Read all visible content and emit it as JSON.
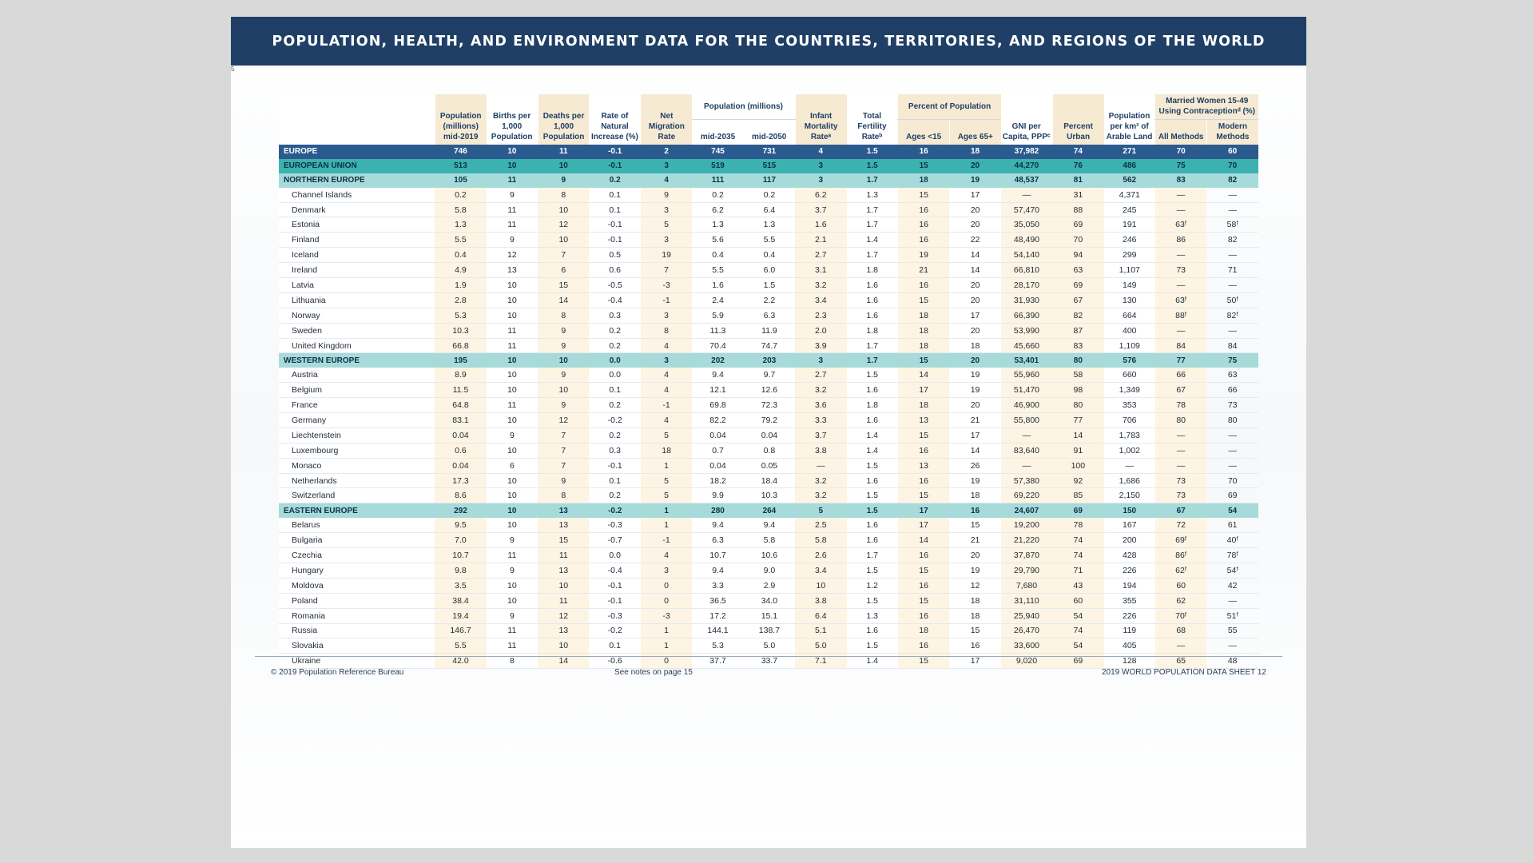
{
  "banner_title": "POPULATION, HEALTH, AND ENVIRONMENT DATA FOR THE COUNTRIES, TERRITORIES, AND REGIONS OF THE WORLD",
  "page_mark": "5",
  "headers": {
    "pop_mid2019": "Population (millions) mid-2019",
    "births": "Births per 1,000 Population",
    "deaths": "Deaths per 1,000 Population",
    "rni": "Rate of Natural Increase (%)",
    "migration": "Net Migration Rate",
    "pop_proj_group": "Population (millions)",
    "mid2035": "mid-2035",
    "mid2050": "mid-2050",
    "imr": "Infant Mortality Rateᵃ",
    "tfr": "Total Fertility Rateᵇ",
    "pct_group": "Percent of Population",
    "ages15": "Ages <15",
    "ages65": "Ages 65+",
    "gni": "GNI per Capita, PPPᶜ",
    "urban": "Percent Urban",
    "arable": "Population per km² of Arable Land",
    "contra_group": "Married Women 15-49 Using Contraceptionᵈ (%)",
    "all_methods": "All Methods",
    "modern_methods": "Modern Methods"
  },
  "rows": [
    {
      "type": "world",
      "name": "EUROPE",
      "v": [
        "746",
        "10",
        "11",
        "-0.1",
        "2",
        "745",
        "731",
        "4",
        "1.5",
        "16",
        "18",
        "37,982",
        "74",
        "271",
        "70",
        "60"
      ]
    },
    {
      "type": "eu",
      "name": "EUROPEAN UNION",
      "v": [
        "513",
        "10",
        "10",
        "-0.1",
        "3",
        "519",
        "515",
        "3",
        "1.5",
        "15",
        "20",
        "44,270",
        "76",
        "486",
        "75",
        "70"
      ]
    },
    {
      "type": "region",
      "name": "NORTHERN EUROPE",
      "v": [
        "105",
        "11",
        "9",
        "0.2",
        "4",
        "111",
        "117",
        "3",
        "1.7",
        "18",
        "19",
        "48,537",
        "81",
        "562",
        "83",
        "82"
      ]
    },
    {
      "type": "country",
      "name": "Channel Islands",
      "v": [
        "0.2",
        "9",
        "8",
        "0.1",
        "9",
        "0.2",
        "0.2",
        "6.2",
        "1.3",
        "15",
        "17",
        "—",
        "31",
        "4,371",
        "—",
        "—"
      ]
    },
    {
      "type": "country",
      "name": "Denmark",
      "v": [
        "5.8",
        "11",
        "10",
        "0.1",
        "3",
        "6.2",
        "6.4",
        "3.7",
        "1.7",
        "16",
        "20",
        "57,470",
        "88",
        "245",
        "—",
        "—"
      ]
    },
    {
      "type": "country",
      "name": "Estonia",
      "v": [
        "1.3",
        "11",
        "12",
        "-0.1",
        "5",
        "1.3",
        "1.3",
        "1.6",
        "1.7",
        "16",
        "20",
        "35,050",
        "69",
        "191",
        "63ᶠ",
        "58ᶠ"
      ]
    },
    {
      "type": "country",
      "name": "Finland",
      "v": [
        "5.5",
        "9",
        "10",
        "-0.1",
        "3",
        "5.6",
        "5.5",
        "2.1",
        "1.4",
        "16",
        "22",
        "48,490",
        "70",
        "246",
        "86",
        "82"
      ]
    },
    {
      "type": "country",
      "name": "Iceland",
      "v": [
        "0.4",
        "12",
        "7",
        "0.5",
        "19",
        "0.4",
        "0.4",
        "2.7",
        "1.7",
        "19",
        "14",
        "54,140",
        "94",
        "299",
        "—",
        "—"
      ]
    },
    {
      "type": "country",
      "name": "Ireland",
      "v": [
        "4.9",
        "13",
        "6",
        "0.6",
        "7",
        "5.5",
        "6.0",
        "3.1",
        "1.8",
        "21",
        "14",
        "66,810",
        "63",
        "1,107",
        "73",
        "71"
      ]
    },
    {
      "type": "country",
      "name": "Latvia",
      "v": [
        "1.9",
        "10",
        "15",
        "-0.5",
        "-3",
        "1.6",
        "1.5",
        "3.2",
        "1.6",
        "16",
        "20",
        "28,170",
        "69",
        "149",
        "—",
        "—"
      ]
    },
    {
      "type": "country",
      "name": "Lithuania",
      "v": [
        "2.8",
        "10",
        "14",
        "-0.4",
        "-1",
        "2.4",
        "2.2",
        "3.4",
        "1.6",
        "15",
        "20",
        "31,930",
        "67",
        "130",
        "63ᶠ",
        "50ᶠ"
      ]
    },
    {
      "type": "country",
      "name": "Norway",
      "v": [
        "5.3",
        "10",
        "8",
        "0.3",
        "3",
        "5.9",
        "6.3",
        "2.3",
        "1.6",
        "18",
        "17",
        "66,390",
        "82",
        "664",
        "88ᶠ",
        "82ᶠ"
      ]
    },
    {
      "type": "country",
      "name": "Sweden",
      "v": [
        "10.3",
        "11",
        "9",
        "0.2",
        "8",
        "11.3",
        "11.9",
        "2.0",
        "1.8",
        "18",
        "20",
        "53,990",
        "87",
        "400",
        "—",
        "—"
      ]
    },
    {
      "type": "country",
      "name": "United Kingdom",
      "v": [
        "66.8",
        "11",
        "9",
        "0.2",
        "4",
        "70.4",
        "74.7",
        "3.9",
        "1.7",
        "18",
        "18",
        "45,660",
        "83",
        "1,109",
        "84",
        "84"
      ]
    },
    {
      "type": "region",
      "name": "WESTERN EUROPE",
      "v": [
        "195",
        "10",
        "10",
        "0.0",
        "3",
        "202",
        "203",
        "3",
        "1.7",
        "15",
        "20",
        "53,401",
        "80",
        "576",
        "77",
        "75"
      ]
    },
    {
      "type": "country",
      "name": "Austria",
      "v": [
        "8.9",
        "10",
        "9",
        "0.0",
        "4",
        "9.4",
        "9.7",
        "2.7",
        "1.5",
        "14",
        "19",
        "55,960",
        "58",
        "660",
        "66",
        "63"
      ]
    },
    {
      "type": "country",
      "name": "Belgium",
      "v": [
        "11.5",
        "10",
        "10",
        "0.1",
        "4",
        "12.1",
        "12.6",
        "3.2",
        "1.6",
        "17",
        "19",
        "51,470",
        "98",
        "1,349",
        "67",
        "66"
      ]
    },
    {
      "type": "country",
      "name": "France",
      "v": [
        "64.8",
        "11",
        "9",
        "0.2",
        "-1",
        "69.8",
        "72.3",
        "3.6",
        "1.8",
        "18",
        "20",
        "46,900",
        "80",
        "353",
        "78",
        "73"
      ]
    },
    {
      "type": "country",
      "name": "Germany",
      "v": [
        "83.1",
        "10",
        "12",
        "-0.2",
        "4",
        "82.2",
        "79.2",
        "3.3",
        "1.6",
        "13",
        "21",
        "55,800",
        "77",
        "706",
        "80",
        "80"
      ]
    },
    {
      "type": "country",
      "name": "Liechtenstein",
      "v": [
        "0.04",
        "9",
        "7",
        "0.2",
        "5",
        "0.04",
        "0.04",
        "3.7",
        "1.4",
        "15",
        "17",
        "—",
        "14",
        "1,783",
        "—",
        "—"
      ]
    },
    {
      "type": "country",
      "name": "Luxembourg",
      "v": [
        "0.6",
        "10",
        "7",
        "0.3",
        "18",
        "0.7",
        "0.8",
        "3.8",
        "1.4",
        "16",
        "14",
        "83,640",
        "91",
        "1,002",
        "—",
        "—"
      ]
    },
    {
      "type": "country",
      "name": "Monaco",
      "v": [
        "0.04",
        "6",
        "7",
        "-0.1",
        "1",
        "0.04",
        "0.05",
        "—",
        "1.5",
        "13",
        "26",
        "—",
        "100",
        "—",
        "—",
        "—"
      ]
    },
    {
      "type": "country",
      "name": "Netherlands",
      "v": [
        "17.3",
        "10",
        "9",
        "0.1",
        "5",
        "18.2",
        "18.4",
        "3.2",
        "1.6",
        "16",
        "19",
        "57,380",
        "92",
        "1,686",
        "73",
        "70"
      ]
    },
    {
      "type": "country",
      "name": "Switzerland",
      "v": [
        "8.6",
        "10",
        "8",
        "0.2",
        "5",
        "9.9",
        "10.3",
        "3.2",
        "1.5",
        "15",
        "18",
        "69,220",
        "85",
        "2,150",
        "73",
        "69"
      ]
    },
    {
      "type": "region",
      "name": "EASTERN EUROPE",
      "v": [
        "292",
        "10",
        "13",
        "-0.2",
        "1",
        "280",
        "264",
        "5",
        "1.5",
        "17",
        "16",
        "24,607",
        "69",
        "150",
        "67",
        "54"
      ]
    },
    {
      "type": "country",
      "name": "Belarus",
      "v": [
        "9.5",
        "10",
        "13",
        "-0.3",
        "1",
        "9.4",
        "9.4",
        "2.5",
        "1.6",
        "17",
        "15",
        "19,200",
        "78",
        "167",
        "72",
        "61"
      ]
    },
    {
      "type": "country",
      "name": "Bulgaria",
      "v": [
        "7.0",
        "9",
        "15",
        "-0.7",
        "-1",
        "6.3",
        "5.8",
        "5.8",
        "1.6",
        "14",
        "21",
        "21,220",
        "74",
        "200",
        "69ᶠ",
        "40ᶠ"
      ]
    },
    {
      "type": "country",
      "name": "Czechia",
      "v": [
        "10.7",
        "11",
        "11",
        "0.0",
        "4",
        "10.7",
        "10.6",
        "2.6",
        "1.7",
        "16",
        "20",
        "37,870",
        "74",
        "428",
        "86ᶠ",
        "78ᶠ"
      ]
    },
    {
      "type": "country",
      "name": "Hungary",
      "v": [
        "9.8",
        "9",
        "13",
        "-0.4",
        "3",
        "9.4",
        "9.0",
        "3.4",
        "1.5",
        "15",
        "19",
        "29,790",
        "71",
        "226",
        "62ᶠ",
        "54ᶠ"
      ]
    },
    {
      "type": "country",
      "name": "Moldova",
      "v": [
        "3.5",
        "10",
        "10",
        "-0.1",
        "0",
        "3.3",
        "2.9",
        "10",
        "1.2",
        "16",
        "12",
        "7,680",
        "43",
        "194",
        "60",
        "42"
      ]
    },
    {
      "type": "country",
      "name": "Poland",
      "v": [
        "38.4",
        "10",
        "11",
        "-0.1",
        "0",
        "36.5",
        "34.0",
        "3.8",
        "1.5",
        "15",
        "18",
        "31,110",
        "60",
        "355",
        "62",
        "—"
      ]
    },
    {
      "type": "country",
      "name": "Romania",
      "v": [
        "19.4",
        "9",
        "12",
        "-0.3",
        "-3",
        "17.2",
        "15.1",
        "6.4",
        "1.3",
        "16",
        "18",
        "25,940",
        "54",
        "226",
        "70ᶠ",
        "51ᶠ"
      ]
    },
    {
      "type": "country",
      "name": "Russia",
      "v": [
        "146.7",
        "11",
        "13",
        "-0.2",
        "1",
        "144.1",
        "138.7",
        "5.1",
        "1.6",
        "18",
        "15",
        "26,470",
        "74",
        "119",
        "68",
        "55"
      ]
    },
    {
      "type": "country",
      "name": "Slovakia",
      "v": [
        "5.5",
        "11",
        "10",
        "0.1",
        "1",
        "5.3",
        "5.0",
        "5.0",
        "1.5",
        "16",
        "16",
        "33,600",
        "54",
        "405",
        "—",
        "—"
      ]
    },
    {
      "type": "country",
      "name": "Ukraine",
      "v": [
        "42.0",
        "8",
        "14",
        "-0.6",
        "0",
        "37.7",
        "33.7",
        "7.1",
        "1.4",
        "15",
        "17",
        "9,020",
        "69",
        "128",
        "65",
        "48"
      ]
    }
  ],
  "footer": {
    "left": "© 2019 Population Reference Bureau",
    "middle": "See notes on page 15",
    "right": "2019 WORLD POPULATION DATA SHEET   12"
  }
}
